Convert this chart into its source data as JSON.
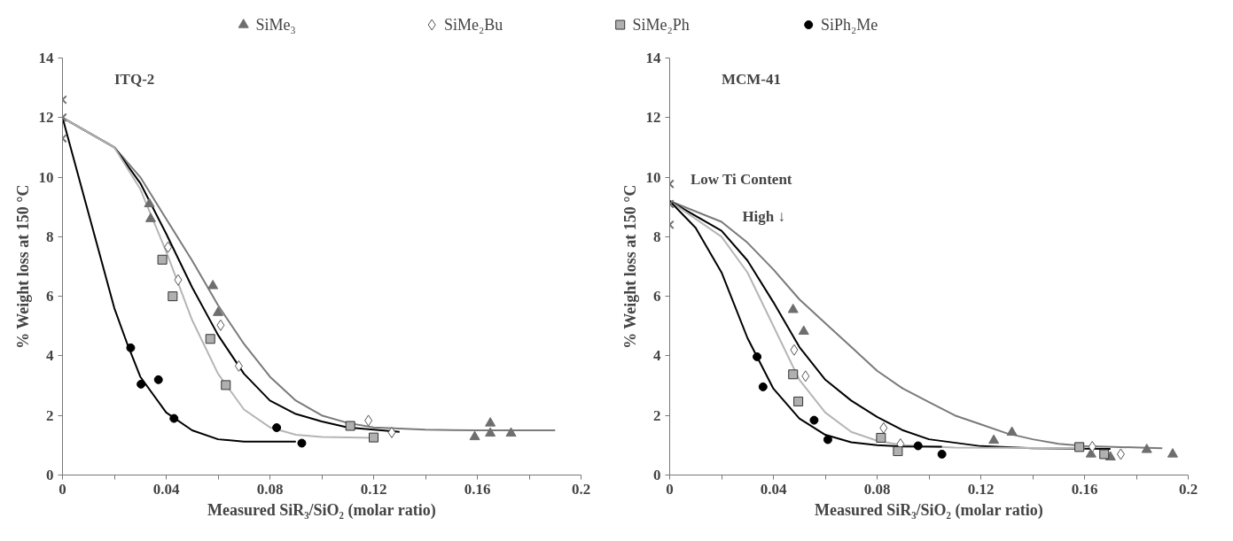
{
  "chart_data": [
    {
      "type": "scatter",
      "title": "ITQ-2",
      "xlabel": "Measured SiR₃/SiO₂ (molar ratio)",
      "ylabel": "% Weight loss at 150 °C",
      "xlim": [
        0,
        0.2
      ],
      "ylim": [
        0,
        14
      ],
      "xticks": [
        0,
        {
          "value": 0.02,
          "label": null
        },
        0.04,
        {
          "value": 0.06,
          "label": null
        },
        0.08,
        {
          "value": 0.1,
          "label": null
        },
        0.12,
        {
          "value": 0.14,
          "label": null
        },
        0.16,
        {
          "value": 0.18,
          "label": null
        },
        0.2
      ],
      "yticks": [
        0,
        2,
        4,
        6,
        8,
        10,
        12,
        14
      ],
      "grid": false,
      "legend": "top",
      "series": [
        {
          "name": "SiMe₃",
          "color": "#6e6e6e",
          "marker": "triangle",
          "x": [
            0.0335,
            0.034,
            0.058,
            0.06,
            0.159,
            0.165,
            0.165,
            0.173
          ],
          "values": [
            9.1,
            8.6,
            6.35,
            5.45,
            1.28,
            1.74,
            1.4,
            1.4
          ]
        },
        {
          "name": "SiMe₂Bu",
          "color": "#555555",
          "marker": "diamond",
          "x": [
            0.0407,
            0.0446,
            0.061,
            0.068,
            0.118,
            0.127
          ],
          "values": [
            7.65,
            6.55,
            5.03,
            3.66,
            1.83,
            1.43
          ]
        },
        {
          "name": "SiMe₂Ph",
          "color": "#b0b0b0",
          "marker": "square",
          "x": [
            0.0385,
            0.0425,
            0.057,
            0.063,
            0.111,
            0.12
          ],
          "values": [
            7.23,
            6.0,
            4.57,
            3.02,
            1.65,
            1.26
          ]
        },
        {
          "name": "SiPh₂Me",
          "color": "#000000",
          "marker": "circle",
          "x": [
            0.0263,
            0.0303,
            0.037,
            0.043,
            0.0826,
            0.0923
          ],
          "values": [
            4.27,
            3.05,
            3.2,
            1.9,
            1.59,
            1.07
          ]
        },
        {
          "color": "#707070",
          "marker": "cross",
          "x": [
            0,
            0,
            0
          ],
          "values": [
            12.6,
            12.0,
            11.3
          ]
        },
        {
          "type": "line",
          "color": "#7a7a7a",
          "x": [
            0,
            0.02,
            0.03,
            0.04,
            0.05,
            0.06,
            0.07,
            0.08,
            0.09,
            0.1,
            0.11,
            0.12,
            0.14,
            0.16,
            0.19
          ],
          "values": [
            12,
            11,
            10,
            8.6,
            7.2,
            5.7,
            4.4,
            3.3,
            2.5,
            2.0,
            1.75,
            1.6,
            1.52,
            1.5,
            1.5
          ]
        },
        {
          "type": "line",
          "color": "#000000",
          "x": [
            0,
            0.02,
            0.03,
            0.04,
            0.05,
            0.06,
            0.07,
            0.08,
            0.09,
            0.1,
            0.11,
            0.13
          ],
          "values": [
            12,
            11,
            9.8,
            8.1,
            6.3,
            4.7,
            3.4,
            2.5,
            2.05,
            1.8,
            1.6,
            1.45
          ]
        },
        {
          "type": "line",
          "color": "#b5b5b5",
          "x": [
            0,
            0.02,
            0.03,
            0.04,
            0.05,
            0.06,
            0.07,
            0.08,
            0.09,
            0.1,
            0.12
          ],
          "values": [
            12,
            11,
            9.6,
            7.5,
            5.2,
            3.4,
            2.2,
            1.6,
            1.35,
            1.28,
            1.25
          ]
        },
        {
          "type": "line",
          "color": "#000000",
          "x": [
            0,
            0.01,
            0.02,
            0.025,
            0.03,
            0.04,
            0.05,
            0.06,
            0.07,
            0.09
          ],
          "values": [
            12,
            8.8,
            5.6,
            4.4,
            3.3,
            2.1,
            1.5,
            1.2,
            1.12,
            1.12
          ]
        }
      ]
    },
    {
      "type": "scatter",
      "title": "MCM-41",
      "xlabel": "Measured SiR₃/SiO₂ (molar ratio)",
      "ylabel": "% Weight loss at 150 °C",
      "xlim": [
        0,
        0.2
      ],
      "ylim": [
        0,
        14
      ],
      "xticks": [
        0,
        {
          "value": 0.02,
          "label": null
        },
        0.04,
        {
          "value": 0.06,
          "label": null
        },
        0.08,
        {
          "value": 0.1,
          "label": null
        },
        0.12,
        {
          "value": 0.14,
          "label": null
        },
        0.16,
        {
          "value": 0.18,
          "label": null
        },
        0.2
      ],
      "yticks": [
        0,
        2,
        4,
        6,
        8,
        10,
        12,
        14
      ],
      "grid": false,
      "legend": "top",
      "annotations": [
        "Low Ti Content",
        "High ↓"
      ],
      "series": [
        {
          "name": "SiMe₃",
          "color": "#6e6e6e",
          "marker": "triangle",
          "x": [
            0.0476,
            0.0517,
            0.125,
            0.132,
            0.1625,
            0.17,
            0.184,
            0.194
          ],
          "values": [
            5.55,
            4.82,
            1.16,
            1.43,
            0.7,
            0.6,
            0.85,
            0.7
          ]
        },
        {
          "name": "SiMe₂Bu",
          "color": "#555555",
          "marker": "diamond",
          "x": [
            0.048,
            0.0524,
            0.0825,
            0.089,
            0.163,
            0.174
          ],
          "values": [
            4.2,
            3.32,
            1.58,
            1.04,
            0.95,
            0.7
          ]
        },
        {
          "name": "SiMe₂Ph",
          "color": "#b0b0b0",
          "marker": "square",
          "x": [
            0.0476,
            0.0496,
            0.0815,
            0.088,
            0.158,
            0.1676
          ],
          "values": [
            3.38,
            2.47,
            1.25,
            0.8,
            0.94,
            0.7
          ]
        },
        {
          "name": "SiPh₂Me",
          "color": "#000000",
          "marker": "circle",
          "x": [
            0.0337,
            0.036,
            0.0557,
            0.061,
            0.0958,
            0.105
          ],
          "values": [
            3.97,
            2.96,
            1.84,
            1.19,
            0.98,
            0.7
          ]
        },
        {
          "color": "#707070",
          "marker": "cross",
          "x": [
            0,
            0,
            0
          ],
          "values": [
            9.77,
            9.1,
            8.4
          ]
        },
        {
          "type": "line",
          "color": "#7a7a7a",
          "x": [
            0,
            0.02,
            0.03,
            0.04,
            0.05,
            0.06,
            0.07,
            0.08,
            0.09,
            0.1,
            0.11,
            0.12,
            0.13,
            0.14,
            0.15,
            0.16,
            0.19
          ],
          "values": [
            9.2,
            8.5,
            7.8,
            6.9,
            5.9,
            5.1,
            4.3,
            3.5,
            2.9,
            2.45,
            2.0,
            1.7,
            1.4,
            1.2,
            1.05,
            0.97,
            0.9
          ]
        },
        {
          "type": "line",
          "color": "#000000",
          "x": [
            0,
            0.02,
            0.03,
            0.04,
            0.05,
            0.06,
            0.07,
            0.08,
            0.09,
            0.1,
            0.12,
            0.14,
            0.17
          ],
          "values": [
            9.2,
            8.2,
            7.2,
            5.8,
            4.3,
            3.2,
            2.5,
            1.95,
            1.5,
            1.2,
            0.97,
            0.9,
            0.88
          ]
        },
        {
          "type": "line",
          "color": "#b5b5b5",
          "x": [
            0,
            0.02,
            0.03,
            0.04,
            0.05,
            0.06,
            0.07,
            0.08,
            0.09,
            0.11,
            0.16
          ],
          "values": [
            9.2,
            8.0,
            6.8,
            5.0,
            3.2,
            2.1,
            1.45,
            1.15,
            1.0,
            0.92,
            0.9
          ]
        },
        {
          "type": "line",
          "color": "#000000",
          "x": [
            0,
            0.01,
            0.02,
            0.03,
            0.04,
            0.05,
            0.06,
            0.07,
            0.08,
            0.09,
            0.105
          ],
          "values": [
            9.2,
            8.3,
            6.8,
            4.6,
            2.9,
            1.9,
            1.35,
            1.1,
            1.0,
            0.96,
            0.95
          ]
        }
      ]
    }
  ]
}
